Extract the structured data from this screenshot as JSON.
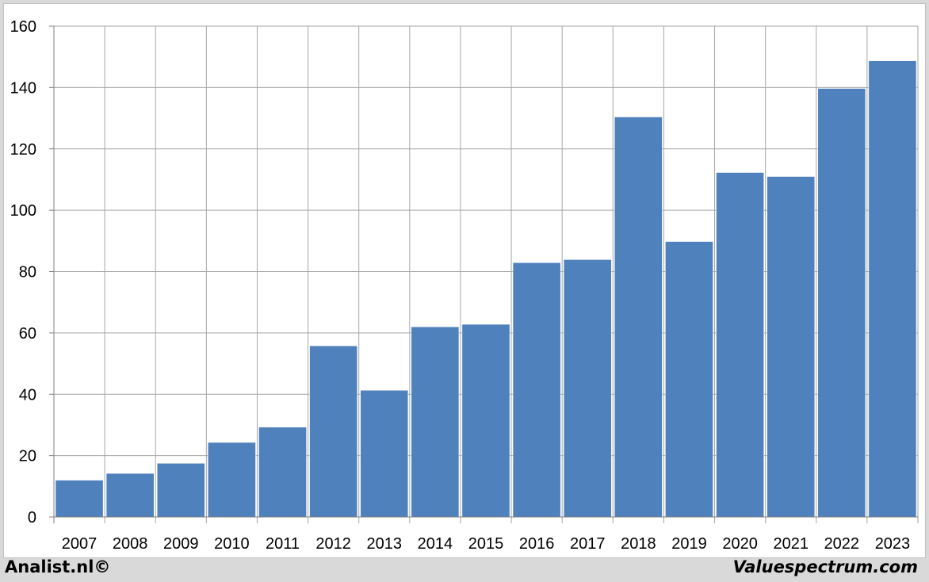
{
  "chart_data": {
    "type": "bar",
    "categories": [
      "2007",
      "2008",
      "2009",
      "2010",
      "2011",
      "2012",
      "2013",
      "2014",
      "2015",
      "2016",
      "2017",
      "2018",
      "2019",
      "2020",
      "2021",
      "2022",
      "2023"
    ],
    "values": [
      12,
      14.2,
      17.5,
      24.3,
      29.3,
      55.8,
      41.3,
      62,
      62.8,
      82.9,
      83.9,
      130.4,
      89.8,
      112.3,
      111,
      139.7,
      148.7
    ],
    "yticks": [
      "0",
      "20",
      "40",
      "60",
      "80",
      "100",
      "120",
      "140",
      "160"
    ],
    "ylim": [
      0,
      160
    ],
    "grid": true,
    "bar_color": "#4f81bd",
    "grid_color": "#a6a6a6"
  },
  "footer": {
    "source_left": "Analist.nl©",
    "source_right": "Valuespectrum.com"
  }
}
